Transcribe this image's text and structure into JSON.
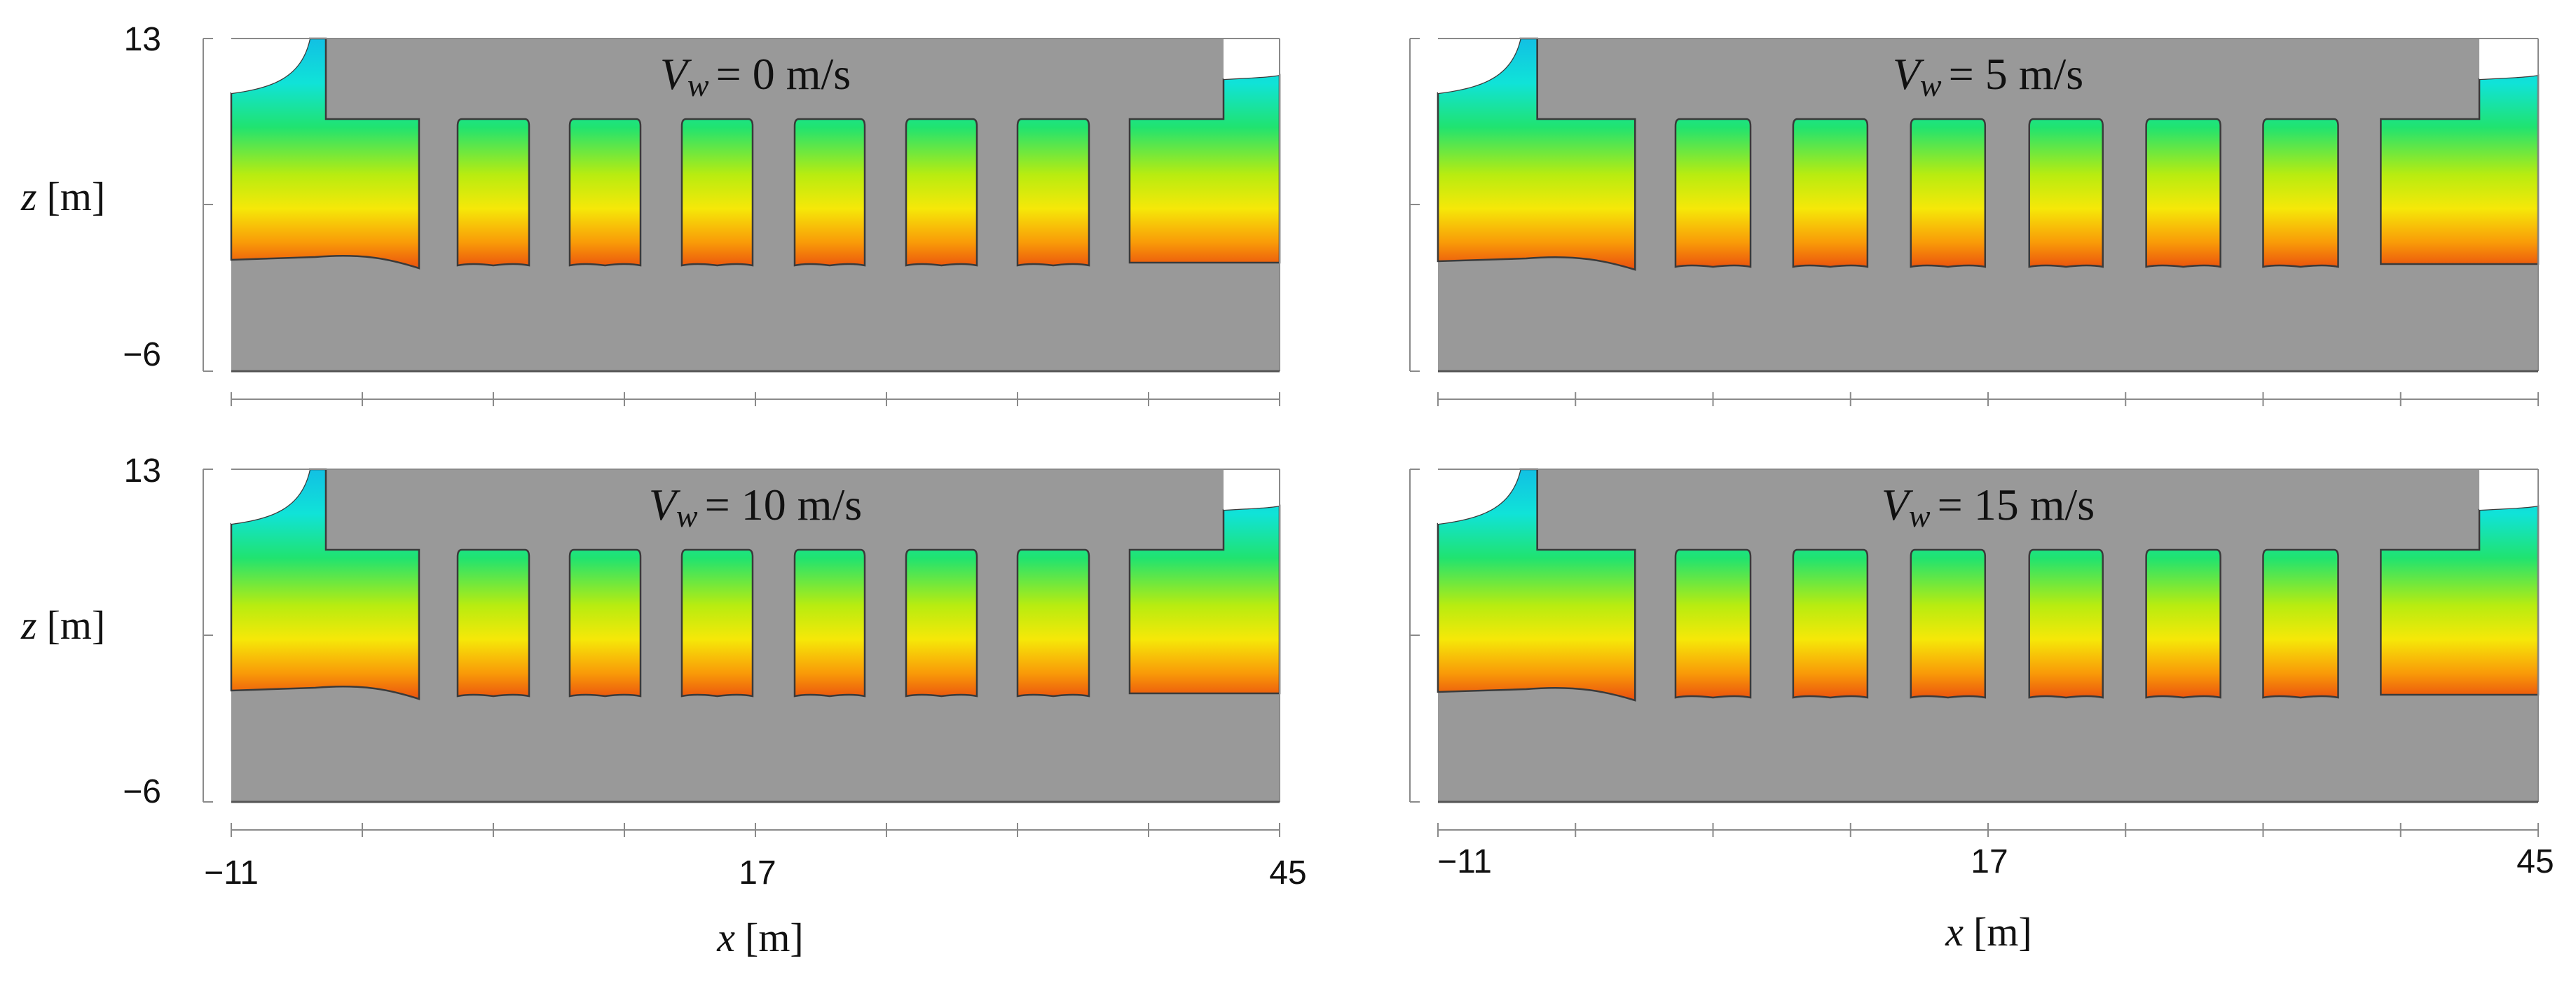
{
  "figure": {
    "panels": [
      {
        "id": "a",
        "title": "= 0 m/s",
        "wind_speed_mps": 0
      },
      {
        "id": "b",
        "title": "= 5 m/s",
        "wind_speed_mps": 5
      },
      {
        "id": "c",
        "title": "= 10 m/s",
        "wind_speed_mps": 10
      },
      {
        "id": "d",
        "title": "= 15 m/s",
        "wind_speed_mps": 15
      }
    ],
    "title_symbol": "V",
    "title_subscript": "w",
    "x_axis": {
      "label_var": "x",
      "label_unit": "[m]",
      "ticks": [
        "−11",
        "17",
        "45"
      ],
      "range": [
        -11,
        45
      ]
    },
    "z_axis": {
      "label_var": "z",
      "label_unit": "[m]",
      "ticks": [
        "13",
        "−6"
      ],
      "range": [
        -6,
        13
      ]
    },
    "colors": {
      "solid": "#999999",
      "outline": "#3a3a3a",
      "axis": "#8a8a8a",
      "gradient": [
        "#0f55d6",
        "#12b8e6",
        "#10e3d8",
        "#20e370",
        "#b8ec10",
        "#f6e808",
        "#f99a08",
        "#e53a10"
      ]
    }
  }
}
